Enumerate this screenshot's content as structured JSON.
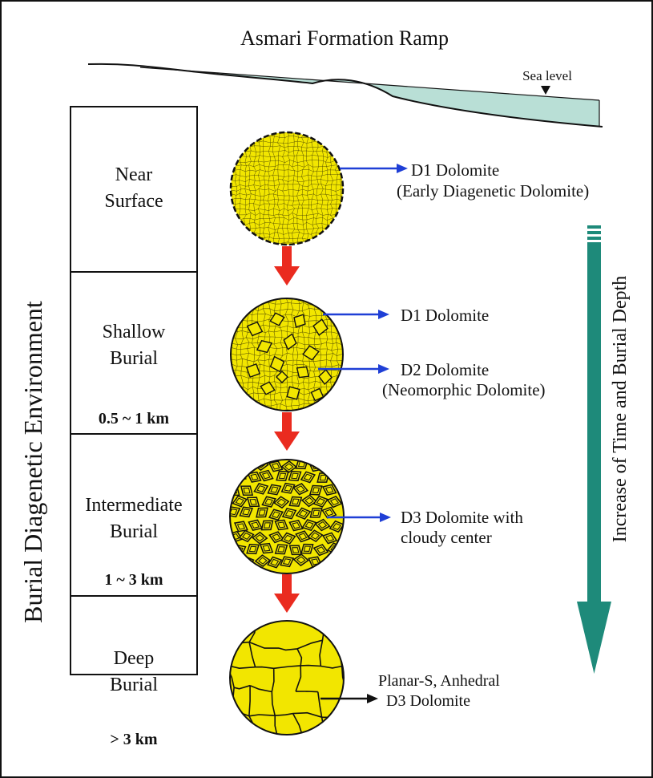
{
  "title": "Asmari Formation Ramp",
  "sea_level_label": "Sea level",
  "vertical_axis_label": "Burial Diagenetic Environment",
  "time_arrow_label": "Increase of Time and  Burial Depth",
  "stages": [
    {
      "name_lines": [
        "Near",
        "Surface"
      ],
      "depth": "",
      "callouts": [
        {
          "lines": [
            "D1 Dolomite",
            "(Early Diagenetic Dolomite)"
          ],
          "arrow_color": "#1f3fd6"
        }
      ]
    },
    {
      "name_lines": [
        "Shallow",
        "Burial"
      ],
      "depth": "0.5 ~ 1 km",
      "callouts": [
        {
          "lines": [
            "D1 Dolomite"
          ],
          "arrow_color": "#1f3fd6"
        },
        {
          "lines": [
            "D2 Dolomite",
            "(Neomorphic Dolomite)"
          ],
          "arrow_color": "#1f3fd6"
        }
      ]
    },
    {
      "name_lines": [
        "Intermediate",
        "Burial"
      ],
      "depth": "1 ~ 3 km",
      "callouts": [
        {
          "lines": [
            "D3 Dolomite with",
            "cloudy center"
          ],
          "arrow_color": "#1f3fd6"
        }
      ]
    },
    {
      "name_lines": [
        "Deep",
        "Burial"
      ],
      "depth": "> 3 km",
      "callouts": [
        {
          "lines": [
            "Planar-S, Anhedral",
            "D3 Dolomite"
          ],
          "arrow_color": "#111111"
        }
      ]
    }
  ],
  "colors": {
    "sea": "#b9dfd6",
    "dolomite_fill": "#f2e600",
    "dolomite_line": "#2a2400",
    "transition_arrow": "#ea2b1f",
    "time_arrow": "#1e8a7a",
    "callout_blue": "#1f3fd6"
  }
}
